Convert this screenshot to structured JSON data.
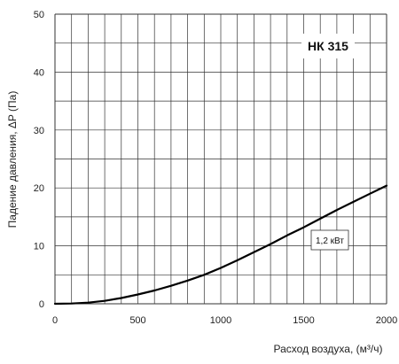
{
  "chart_data": {
    "type": "line",
    "xlabel": "Расход воздуха, (м³/ч)",
    "ylabel": "Падение давления, ΔP (Па)",
    "xlim": [
      0,
      2000
    ],
    "ylim": [
      0,
      50
    ],
    "x_ticks": [
      "0",
      "500",
      "1000",
      "1500",
      "2000"
    ],
    "y_ticks": [
      "0",
      "10",
      "20",
      "30",
      "40",
      "50"
    ],
    "grid": true,
    "annotations": {
      "model": "НК 315",
      "power": "1,2 кВт"
    },
    "series": [
      {
        "x": [
          0,
          100,
          200,
          300,
          400,
          500,
          600,
          700,
          800,
          900,
          1000,
          1100,
          1200,
          1300,
          1400,
          1500,
          1600,
          1700,
          1800,
          1900,
          2000
        ],
        "y": [
          0,
          0.05,
          0.2,
          0.5,
          1.0,
          1.6,
          2.3,
          3.1,
          4.0,
          5.0,
          6.2,
          7.5,
          8.9,
          10.3,
          11.8,
          13.2,
          14.7,
          16.2,
          17.6,
          19.0,
          20.4
        ]
      }
    ]
  }
}
